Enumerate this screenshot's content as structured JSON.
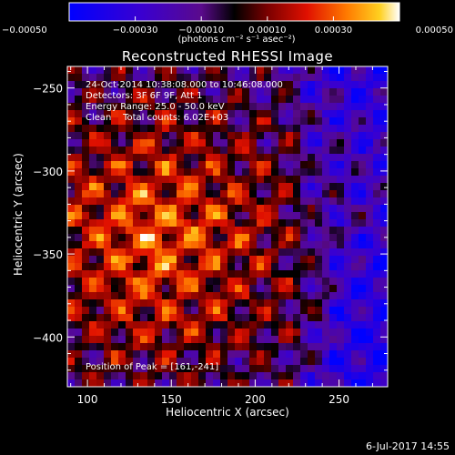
{
  "chart_data": {
    "type": "heatmap",
    "title": "Reconstructed RHESSI Image",
    "xlabel": "Heliocentric X (arcsec)",
    "ylabel": "Heliocentric Y (arcsec)",
    "xlim": [
      88,
      279
    ],
    "ylim": [
      -430,
      -237
    ],
    "xticks": [
      100,
      150,
      200,
      250
    ],
    "yticks": [
      -250,
      -300,
      -350,
      -400
    ],
    "colorbar": {
      "label": "(photons cm⁻² s⁻¹ asec⁻²)",
      "range": [
        -0.0005,
        0.0005
      ],
      "ticks": [
        "−0.00050",
        "−0.00030",
        "−0.00010",
        "0.00010",
        "0.00030",
        "0.00050"
      ]
    },
    "annotations": [
      "24-Oct-2014 10:38:08.000 to 10:46:08.000",
      "Detectors: 3F 6F 9F, Att 1",
      "Energy Range: 25.0 - 50.0 keV",
      "Clean    Total counts: 6.02E+03"
    ],
    "peak_text": "Position of Peak = [161,-241]",
    "peak_position": [
      161,
      -241
    ]
  },
  "footer": {
    "date": "6-Jul-2017 14:55"
  }
}
